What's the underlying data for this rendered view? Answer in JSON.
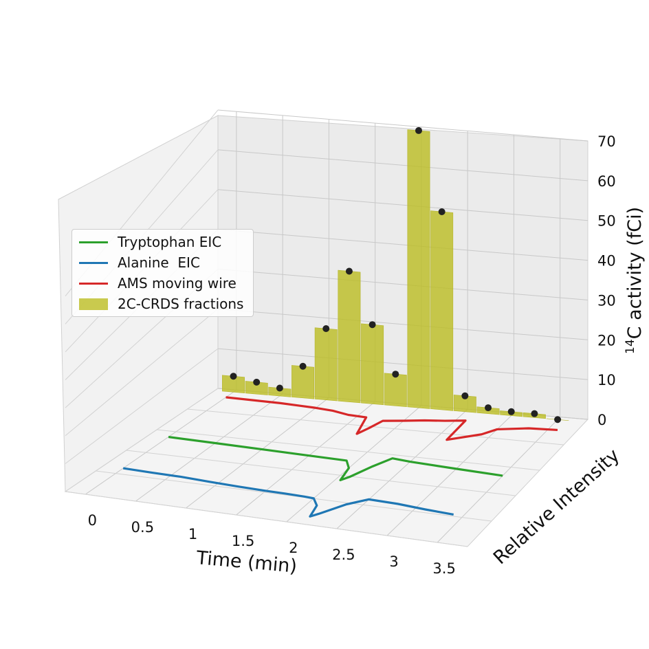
{
  "chart_data": {
    "type": "3d-line-bar",
    "xlabel": "Time (min)",
    "ylabel": "Relative Intensity",
    "zlabel_sup": "14",
    "zlabel_main": "C activity (fCi)",
    "x_ticks": [
      "0",
      "0.5",
      "1",
      "1.5",
      "2",
      "2.5",
      "3",
      "3.5"
    ],
    "z_ticks": [
      "0",
      "10",
      "20",
      "30",
      "40",
      "50",
      "60",
      "70"
    ],
    "xlim": [
      -0.2,
      3.8
    ],
    "zlim": [
      0,
      70
    ],
    "grid": true,
    "legend_placement": "center-left",
    "series": [
      {
        "name": "Tryptophan EIC",
        "color": "#2ca02c",
        "x": [
          0.0,
          0.5,
          1.0,
          1.5,
          1.9,
          2.0,
          2.05,
          2.1,
          2.2,
          2.3,
          2.5,
          3.0,
          3.5
        ],
        "y": [
          1.0,
          0.96,
          0.92,
          0.88,
          0.85,
          0.6,
          0.15,
          0.3,
          0.75,
          1.1,
          1.05,
          0.98,
          0.92
        ]
      },
      {
        "name": "Alanine  EIC",
        "color": "#1f77b4",
        "x": [
          0.0,
          0.3,
          0.6,
          0.9,
          1.2,
          1.5,
          1.7,
          1.9,
          2.0,
          2.1,
          2.15,
          2.2,
          2.35,
          2.5,
          2.8,
          3.1,
          3.4
        ],
        "y": [
          1.0,
          0.97,
          0.95,
          0.9,
          0.86,
          0.83,
          0.82,
          0.8,
          0.78,
          0.55,
          0.15,
          0.28,
          0.72,
          0.98,
          0.95,
          0.88,
          0.83
        ]
      },
      {
        "name": "AMS moving wire",
        "color": "#d62728",
        "x": [
          0.0,
          0.3,
          0.6,
          0.8,
          1.0,
          1.2,
          1.4,
          1.6,
          1.7,
          1.75,
          1.8,
          2.0,
          2.2,
          2.4,
          2.6,
          2.62,
          2.9,
          3.0,
          3.3,
          3.6
        ],
        "y": [
          1.0,
          0.98,
          0.96,
          0.93,
          0.9,
          0.85,
          0.75,
          0.72,
          0.1,
          0.35,
          0.65,
          0.72,
          0.8,
          0.85,
          0.92,
          0.2,
          0.5,
          0.72,
          0.85,
          0.88
        ]
      }
    ],
    "bars": {
      "name": "2C-CRDS fractions",
      "color": "#bcbd22",
      "x": [
        0.0,
        0.25,
        0.5,
        0.75,
        1.0,
        1.25,
        1.5,
        1.75,
        2.0,
        2.25,
        2.5,
        2.75,
        3.0,
        3.25,
        3.5
      ],
      "values": [
        4,
        3,
        2,
        8,
        18,
        33,
        20,
        8,
        70,
        50,
        4,
        1.5,
        1,
        1,
        0
      ]
    }
  }
}
